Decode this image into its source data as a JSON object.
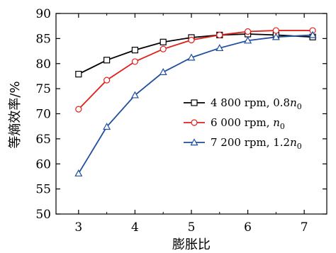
{
  "chart_data": {
    "type": "line",
    "title": "",
    "xlabel": "膨胀比",
    "ylabel": "等熵效率/%",
    "xlim": [
      2.6,
      7.4
    ],
    "ylim": [
      50,
      90
    ],
    "xticks": [
      3,
      4,
      5,
      6,
      7
    ],
    "yticks": [
      50,
      55,
      60,
      65,
      70,
      75,
      80,
      85,
      90
    ],
    "grid": false,
    "legend_position": "center-right",
    "series": [
      {
        "name": "4 800 rpm, 0.8n0",
        "legend_main": "4 800 rpm, 0.8",
        "legend_italic": "n",
        "legend_sub": "0",
        "color": "#000000",
        "marker": "square",
        "x": [
          3.0,
          3.5,
          4.0,
          4.5,
          5.0,
          5.5,
          6.0,
          6.5,
          7.15
        ],
        "y": [
          77.9,
          80.7,
          82.7,
          84.3,
          85.2,
          85.7,
          85.9,
          85.7,
          85.3
        ]
      },
      {
        "name": "6 000 rpm, n0",
        "legend_main": "6 000 rpm, ",
        "legend_italic": "n",
        "legend_sub": "0",
        "color": "#e0201b",
        "marker": "circle",
        "x": [
          3.0,
          3.5,
          4.0,
          4.5,
          5.0,
          5.5,
          6.0,
          6.5,
          7.15
        ],
        "y": [
          70.9,
          76.7,
          80.4,
          82.9,
          84.7,
          85.7,
          86.4,
          86.6,
          86.6
        ]
      },
      {
        "name": "7 200 rpm, 1.2n0",
        "legend_main": "7 200 rpm, 1.2",
        "legend_italic": "n",
        "legend_sub": "0",
        "color": "#1f4f9e",
        "marker": "triangle",
        "x": [
          3.0,
          3.5,
          4.0,
          4.5,
          5.0,
          5.5,
          6.0,
          6.5,
          7.15
        ],
        "y": [
          58.1,
          67.4,
          73.7,
          78.3,
          81.2,
          83.1,
          84.6,
          85.3,
          85.7
        ]
      }
    ]
  }
}
